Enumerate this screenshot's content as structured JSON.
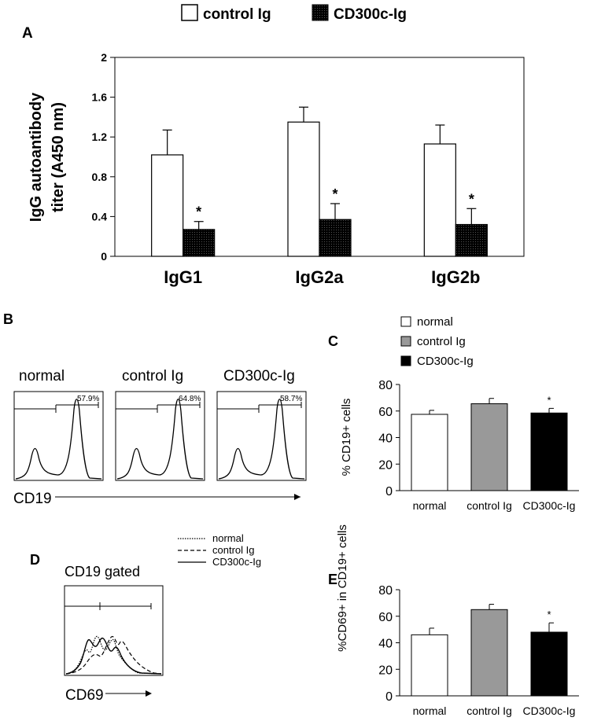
{
  "chart_data": [
    {
      "panel": "A",
      "type": "bar",
      "legend_position": "top",
      "ylabel": "IgG autoantibody titer (A450 nm)",
      "ylabel_lines": [
        "IgG autoantibody",
        "titer (A450 nm)"
      ],
      "ylim": [
        0,
        2
      ],
      "yticks": [
        "0",
        "0.4",
        "0.8",
        "1.2",
        "1.6",
        "2"
      ],
      "categories": [
        "IgG1",
        "IgG2a",
        "IgG2b"
      ],
      "series": [
        {
          "name": "control Ig",
          "fill": "#ffffff",
          "values": [
            1.02,
            1.35,
            1.13
          ],
          "errors": [
            0.25,
            0.15,
            0.19
          ],
          "stars": [
            "",
            "",
            ""
          ]
        },
        {
          "name": "CD300c-Ig",
          "fill": "#000000",
          "values": [
            0.27,
            0.37,
            0.32
          ],
          "errors": [
            0.08,
            0.16,
            0.16
          ],
          "stars": [
            "*",
            "*",
            "*"
          ]
        }
      ]
    },
    {
      "panel": "B",
      "type": "histogram",
      "xlabel": "CD19",
      "plots": [
        {
          "title": "normal",
          "gate_percent": "57.9%"
        },
        {
          "title": "control Ig",
          "gate_percent": "64.8%"
        },
        {
          "title": "CD300c-Ig",
          "gate_percent": "58.7%"
        }
      ]
    },
    {
      "panel": "C",
      "type": "bar",
      "legend_position": "top",
      "ylabel": "% CD19+ cells",
      "ylim": [
        0,
        80
      ],
      "yticks": [
        "0",
        "20",
        "40",
        "60",
        "80"
      ],
      "categories": [
        "normal",
        "control Ig",
        "CD300c-Ig"
      ],
      "values": [
        57.5,
        65.5,
        58.5
      ],
      "errors": [
        3,
        4,
        3.5
      ],
      "stars": [
        "",
        "",
        "*"
      ],
      "fills": [
        "#ffffff",
        "#999999",
        "#000000"
      ]
    },
    {
      "panel": "D",
      "type": "histogram",
      "title": "CD19 gated",
      "xlabel": "CD69",
      "legend": [
        {
          "name": "normal",
          "style": "dotted"
        },
        {
          "name": "control Ig",
          "style": "dashed"
        },
        {
          "name": "CD300c-Ig",
          "style": "solid"
        }
      ]
    },
    {
      "panel": "E",
      "type": "bar",
      "ylabel": "%CD69+ in CD19+ cells",
      "ylim": [
        0,
        80
      ],
      "yticks": [
        "0",
        "20",
        "40",
        "60",
        "80"
      ],
      "categories": [
        "normal",
        "control Ig",
        "CD300c-Ig"
      ],
      "values": [
        46,
        65,
        48
      ],
      "errors": [
        5,
        4,
        7
      ],
      "stars": [
        "",
        "",
        "*"
      ],
      "fills": [
        "#ffffff",
        "#999999",
        "#000000"
      ]
    }
  ]
}
